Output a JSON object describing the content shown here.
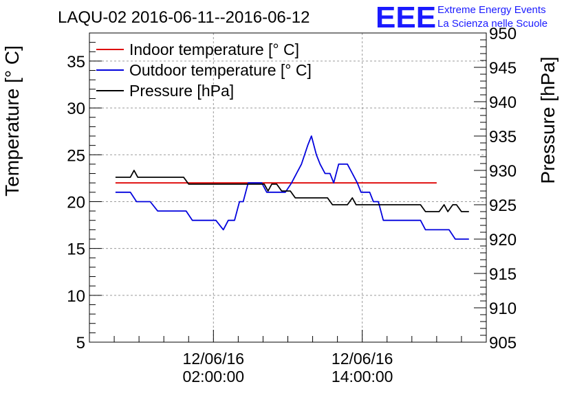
{
  "chart_data": {
    "type": "line",
    "title": "LAQU-02 2016-06-11--2016-06-12",
    "logo": {
      "mark": "EEE",
      "line1": "Extreme Energy Events",
      "line2": "La Scienza nelle Scuole",
      "color": "#1a1aff"
    },
    "ylabel_left": "Temperature [° C]",
    "ylabel_right": "Pressure [hPa]",
    "ylim_left": [
      5,
      38
    ],
    "ylim_right": [
      905,
      950
    ],
    "yticks_left": [
      5,
      10,
      15,
      20,
      25,
      30,
      35
    ],
    "yticks_right": [
      905,
      910,
      915,
      920,
      925,
      930,
      935,
      940,
      945,
      950
    ],
    "x_unit": "hours since 2016-06-11 16:00",
    "xlim": [
      0,
      32
    ],
    "xticks": [
      {
        "x": 10,
        "date": "12/06/16",
        "time": "02:00:00"
      },
      {
        "x": 22,
        "date": "12/06/16",
        "time": "14:00:00"
      }
    ],
    "grid": true,
    "legend_position": "top-left",
    "series": [
      {
        "name": "Indoor temperature [° C]",
        "axis": "left",
        "color": "#dd0000",
        "points": [
          [
            2.1,
            22.0
          ],
          [
            28.0,
            22.0
          ]
        ]
      },
      {
        "name": "Outdoor temperature [° C]",
        "axis": "left",
        "color": "#0000dd",
        "points": [
          [
            2.1,
            21.0
          ],
          [
            3.3,
            21.0
          ],
          [
            3.8,
            20.0
          ],
          [
            4.9,
            20.0
          ],
          [
            5.5,
            19.0
          ],
          [
            7.8,
            19.0
          ],
          [
            8.3,
            18.0
          ],
          [
            10.2,
            18.0
          ],
          [
            10.8,
            17.0
          ],
          [
            11.2,
            18.0
          ],
          [
            11.7,
            18.0
          ],
          [
            12.1,
            20.0
          ],
          [
            12.4,
            20.0
          ],
          [
            12.8,
            22.0
          ],
          [
            13.9,
            22.0
          ],
          [
            14.3,
            21.0
          ],
          [
            15.8,
            21.0
          ],
          [
            16.3,
            22.0
          ],
          [
            16.7,
            23.0
          ],
          [
            17.1,
            24.0
          ],
          [
            17.6,
            26.0
          ],
          [
            17.9,
            27.0
          ],
          [
            18.3,
            25.0
          ],
          [
            18.6,
            24.0
          ],
          [
            19.0,
            23.0
          ],
          [
            19.4,
            23.0
          ],
          [
            19.7,
            22.0
          ],
          [
            20.1,
            24.0
          ],
          [
            20.8,
            24.0
          ],
          [
            21.2,
            23.0
          ],
          [
            21.6,
            22.0
          ],
          [
            21.9,
            21.0
          ],
          [
            22.6,
            21.0
          ],
          [
            22.9,
            20.0
          ],
          [
            23.3,
            20.0
          ],
          [
            23.7,
            18.0
          ],
          [
            26.7,
            18.0
          ],
          [
            27.1,
            17.0
          ],
          [
            29.0,
            17.0
          ],
          [
            29.5,
            16.0
          ],
          [
            30.6,
            16.0
          ]
        ],
        "smooth": true
      },
      {
        "name": "Pressure [hPa]",
        "axis": "right",
        "color": "#000000",
        "points": [
          [
            2.1,
            929.0
          ],
          [
            3.3,
            929.0
          ],
          [
            3.6,
            930.0
          ],
          [
            3.9,
            929.0
          ],
          [
            7.6,
            929.0
          ],
          [
            8.0,
            928.0
          ],
          [
            14.1,
            928.0
          ],
          [
            14.4,
            927.0
          ],
          [
            14.7,
            928.0
          ],
          [
            15.1,
            928.0
          ],
          [
            15.5,
            927.0
          ],
          [
            16.2,
            927.0
          ],
          [
            16.6,
            926.0
          ],
          [
            19.2,
            926.0
          ],
          [
            19.6,
            925.0
          ],
          [
            20.8,
            925.0
          ],
          [
            21.2,
            926.0
          ],
          [
            21.5,
            925.0
          ],
          [
            26.7,
            925.0
          ],
          [
            27.1,
            924.0
          ],
          [
            28.2,
            924.0
          ],
          [
            28.6,
            925.0
          ],
          [
            28.9,
            924.0
          ],
          [
            29.3,
            925.0
          ],
          [
            29.6,
            925.0
          ],
          [
            30.0,
            924.0
          ],
          [
            30.6,
            924.0
          ]
        ]
      }
    ]
  }
}
